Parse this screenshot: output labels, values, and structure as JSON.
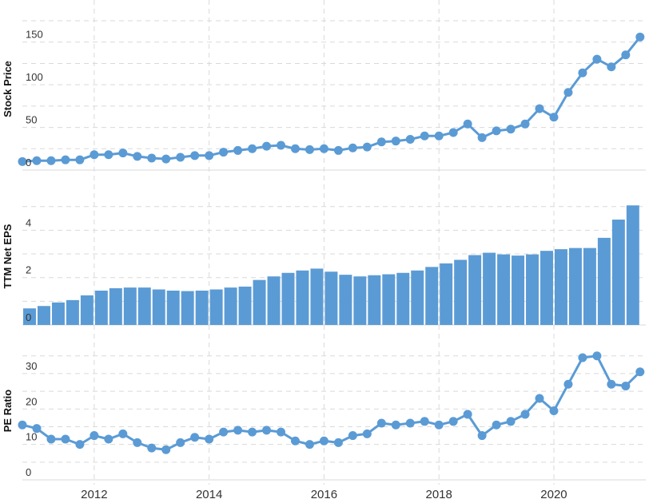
{
  "colors": {
    "series": "#5b9bd5",
    "grid": "#d9d9d9",
    "text": "#333333"
  },
  "chart_data": [
    {
      "type": "line",
      "ylabel": "Stock Price",
      "ylim": [
        0,
        190
      ],
      "yticks": [
        0,
        50,
        100,
        150
      ],
      "xlim": [
        2010.75,
        2021.6
      ],
      "grid": true,
      "x": [
        2010.75,
        2011.0,
        2011.25,
        2011.5,
        2011.75,
        2012.0,
        2012.25,
        2012.5,
        2012.75,
        2013.0,
        2013.25,
        2013.5,
        2013.75,
        2014.0,
        2014.25,
        2014.5,
        2014.75,
        2015.0,
        2015.25,
        2015.5,
        2015.75,
        2016.0,
        2016.25,
        2016.5,
        2016.75,
        2017.0,
        2017.25,
        2017.5,
        2017.75,
        2018.0,
        2018.25,
        2018.5,
        2018.75,
        2019.0,
        2019.25,
        2019.5,
        2019.75,
        2020.0,
        2020.25,
        2020.5,
        2020.75,
        2021.0,
        2021.25,
        2021.5
      ],
      "values": [
        10,
        11,
        11,
        12,
        12,
        18,
        18,
        20,
        16,
        14,
        13,
        15,
        17,
        17,
        21,
        23,
        25,
        28,
        29,
        25,
        24,
        25,
        23,
        26,
        27,
        33,
        34,
        36,
        40,
        40,
        44,
        54,
        38,
        46,
        48,
        54,
        72,
        62,
        91,
        114,
        130,
        121,
        135,
        156
      ]
    },
    {
      "type": "bar",
      "ylabel": "TTM Net EPS",
      "ylim": [
        0,
        5.8
      ],
      "yticks": [
        0,
        2,
        4
      ],
      "xlim": [
        2010.75,
        2021.6
      ],
      "grid": true,
      "x": [
        2010.75,
        2011.0,
        2011.25,
        2011.5,
        2011.75,
        2012.0,
        2012.25,
        2012.5,
        2012.75,
        2013.0,
        2013.25,
        2013.5,
        2013.75,
        2014.0,
        2014.25,
        2014.5,
        2014.75,
        2015.0,
        2015.25,
        2015.5,
        2015.75,
        2016.0,
        2016.25,
        2016.5,
        2016.75,
        2017.0,
        2017.25,
        2017.5,
        2017.75,
        2018.0,
        2018.25,
        2018.5,
        2018.75,
        2019.0,
        2019.25,
        2019.5,
        2019.75,
        2020.0,
        2020.25,
        2020.5,
        2020.75,
        2021.0,
        2021.25,
        2021.5
      ],
      "values": [
        0.7,
        0.8,
        0.95,
        1.05,
        1.25,
        1.45,
        1.55,
        1.58,
        1.58,
        1.5,
        1.45,
        1.43,
        1.45,
        1.5,
        1.58,
        1.62,
        1.9,
        2.05,
        2.2,
        2.3,
        2.38,
        2.25,
        2.12,
        2.05,
        2.1,
        2.14,
        2.2,
        2.3,
        2.45,
        2.6,
        2.75,
        2.95,
        3.05,
        2.98,
        2.93,
        2.98,
        3.13,
        3.2,
        3.25,
        3.25,
        3.68,
        4.45,
        5.05,
        null
      ]
    },
    {
      "type": "line",
      "ylabel": "PE Ratio",
      "ylim": [
        0,
        39
      ],
      "yticks": [
        0,
        10,
        20,
        30
      ],
      "xlim": [
        2010.75,
        2021.6
      ],
      "grid": true,
      "x": [
        2010.75,
        2011.0,
        2011.25,
        2011.5,
        2011.75,
        2012.0,
        2012.25,
        2012.5,
        2012.75,
        2013.0,
        2013.25,
        2013.5,
        2013.75,
        2014.0,
        2014.25,
        2014.5,
        2014.75,
        2015.0,
        2015.25,
        2015.5,
        2015.75,
        2016.0,
        2016.25,
        2016.5,
        2016.75,
        2017.0,
        2017.25,
        2017.5,
        2017.75,
        2018.0,
        2018.25,
        2018.5,
        2018.75,
        2019.0,
        2019.25,
        2019.5,
        2019.75,
        2020.0,
        2020.25,
        2020.5,
        2020.75,
        2021.0,
        2021.25,
        2021.5
      ],
      "values": [
        15.5,
        14.5,
        11.5,
        11.5,
        10,
        12.5,
        11.5,
        13,
        10.5,
        9,
        8.5,
        10.5,
        12,
        11.5,
        13.5,
        14,
        13.5,
        14,
        13.5,
        11,
        10,
        11,
        10.5,
        12.5,
        13,
        16,
        15.5,
        16,
        16.5,
        15.5,
        16.5,
        18.5,
        12.5,
        15.5,
        16.5,
        18.5,
        23,
        19.5,
        27,
        34.5,
        35,
        27,
        26.5,
        30.5
      ]
    }
  ],
  "x_axis": {
    "ticks": [
      2012,
      2014,
      2016,
      2018,
      2020
    ]
  }
}
